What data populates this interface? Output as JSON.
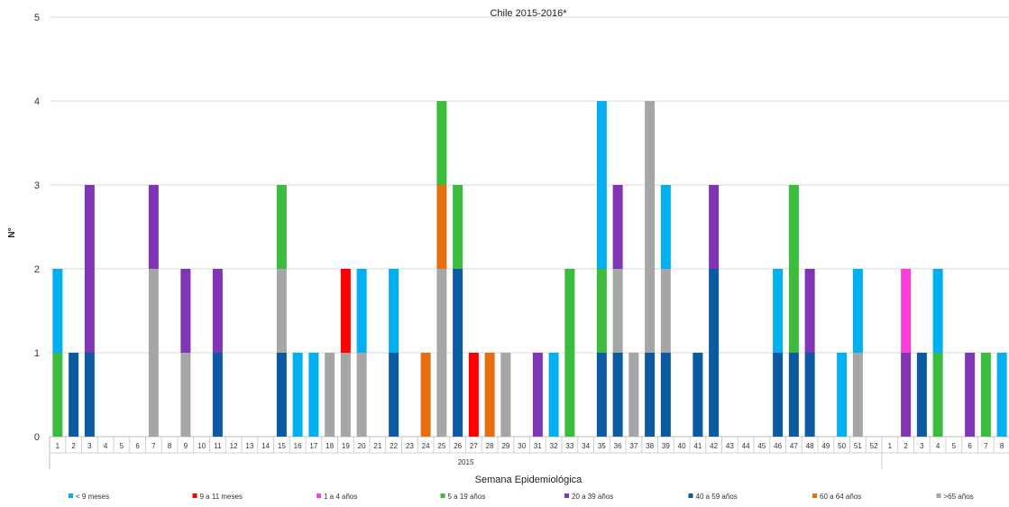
{
  "chart_data": {
    "type": "bar",
    "stacked": true,
    "title": "Chile 2015-2016*",
    "xlabel": "Semana Epidemiológica",
    "ylabel": "N°",
    "ylim": [
      0,
      5
    ],
    "yticks": [
      0,
      1,
      2,
      3,
      4,
      5
    ],
    "grid": true,
    "legend_position": "bottom",
    "year_groups": [
      {
        "label": "2015",
        "count": 52
      },
      {
        "label": "",
        "count": 10
      }
    ],
    "categories": [
      "1",
      "2",
      "3",
      "4",
      "5",
      "6",
      "7",
      "8",
      "9",
      "10",
      "11",
      "12",
      "13",
      "14",
      "15",
      "16",
      "17",
      "18",
      "19",
      "20",
      "21",
      "22",
      "23",
      "24",
      "25",
      "26",
      "27",
      "28",
      "29",
      "30",
      "31",
      "32",
      "33",
      "34",
      "35",
      "36",
      "37",
      "38",
      "39",
      "40",
      "41",
      "42",
      "43",
      "44",
      "45",
      "46",
      "47",
      "48",
      "49",
      "50",
      "51",
      "52",
      "1",
      "2",
      "3",
      "4",
      "5",
      "6",
      "7",
      "8",
      "9",
      "10"
    ],
    "series": [
      {
        "name": "< 9 meses",
        "color": "#00b0f0",
        "values": [
          1,
          0,
          0,
          0,
          0,
          0,
          0,
          0,
          0,
          0,
          0,
          0,
          0,
          0,
          0,
          1,
          1,
          0,
          0,
          1,
          0,
          1,
          0,
          0,
          0,
          0,
          0,
          0,
          0,
          0,
          0,
          1,
          0,
          0,
          2,
          0,
          0,
          0,
          1,
          0,
          0,
          0,
          0,
          0,
          0,
          1,
          0,
          0,
          0,
          1,
          1,
          0,
          0,
          0,
          0,
          1,
          0,
          0,
          0,
          1,
          0,
          0
        ]
      },
      {
        "name": "9  a 11 meses",
        "color": "#ff0000",
        "values": [
          0,
          0,
          0,
          0,
          0,
          0,
          0,
          0,
          0,
          0,
          0,
          0,
          0,
          0,
          0,
          0,
          0,
          0,
          1,
          0,
          0,
          0,
          0,
          0,
          0,
          0,
          1,
          0,
          0,
          0,
          0,
          0,
          0,
          0,
          0,
          0,
          0,
          0,
          0,
          0,
          0,
          0,
          0,
          0,
          0,
          0,
          0,
          0,
          0,
          0,
          0,
          0,
          0,
          0,
          0,
          0,
          0,
          0,
          0,
          0,
          0,
          0
        ]
      },
      {
        "name": "1  a 4 años",
        "color": "#ff3cdc",
        "values": [
          0,
          0,
          0,
          0,
          0,
          0,
          0,
          0,
          0,
          0,
          0,
          0,
          0,
          0,
          0,
          0,
          0,
          0,
          0,
          0,
          0,
          0,
          0,
          0,
          0,
          0,
          0,
          0,
          0,
          0,
          0,
          0,
          0,
          0,
          0,
          0,
          0,
          0,
          0,
          0,
          0,
          0,
          0,
          0,
          0,
          0,
          0,
          0,
          0,
          0,
          0,
          0,
          0,
          1,
          0,
          0,
          0,
          0,
          0,
          0,
          0,
          0
        ]
      },
      {
        "name": "5 a 19 años",
        "color": "#3cbc3c",
        "values": [
          1,
          0,
          0,
          0,
          0,
          0,
          0,
          0,
          0,
          0,
          0,
          0,
          0,
          0,
          1,
          0,
          0,
          0,
          0,
          0,
          0,
          0,
          0,
          0,
          1,
          1,
          0,
          0,
          0,
          0,
          0,
          0,
          2,
          0,
          1,
          0,
          0,
          0,
          0,
          0,
          0,
          0,
          0,
          0,
          0,
          0,
          2,
          0,
          0,
          0,
          0,
          0,
          0,
          0,
          0,
          1,
          0,
          0,
          1,
          0,
          0,
          0
        ]
      },
      {
        "name": "20 a 39 años",
        "color": "#7f35b5",
        "values": [
          0,
          0,
          2,
          0,
          0,
          0,
          1,
          0,
          1,
          0,
          1,
          0,
          0,
          0,
          0,
          0,
          0,
          0,
          0,
          0,
          0,
          0,
          0,
          0,
          0,
          0,
          0,
          0,
          0,
          0,
          1,
          0,
          0,
          0,
          0,
          1,
          0,
          0,
          0,
          0,
          0,
          1,
          0,
          0,
          0,
          0,
          0,
          1,
          0,
          0,
          0,
          0,
          0,
          1,
          0,
          0,
          0,
          1,
          0,
          0,
          0,
          0
        ]
      },
      {
        "name": "40 a 59 años",
        "color": "#0b5aa2",
        "values": [
          0,
          1,
          1,
          0,
          0,
          0,
          0,
          0,
          0,
          0,
          1,
          0,
          0,
          0,
          1,
          0,
          0,
          0,
          0,
          0,
          0,
          1,
          0,
          0,
          0,
          2,
          0,
          0,
          0,
          0,
          0,
          0,
          0,
          0,
          1,
          1,
          0,
          1,
          1,
          0,
          1,
          2,
          0,
          0,
          0,
          1,
          1,
          1,
          0,
          0,
          0,
          0,
          0,
          0,
          1,
          0,
          0,
          0,
          0,
          0,
          1,
          0
        ]
      },
      {
        "name": "60 a 64 años",
        "color": "#e66f12",
        "values": [
          0,
          0,
          0,
          0,
          0,
          0,
          0,
          0,
          0,
          0,
          0,
          0,
          0,
          0,
          0,
          0,
          0,
          0,
          0,
          0,
          0,
          0,
          0,
          1,
          1,
          0,
          0,
          1,
          0,
          0,
          0,
          0,
          0,
          0,
          0,
          0,
          0,
          0,
          0,
          0,
          0,
          0,
          0,
          0,
          0,
          0,
          0,
          0,
          0,
          0,
          0,
          0,
          0,
          0,
          0,
          0,
          0,
          0,
          0,
          0,
          0,
          0
        ]
      },
      {
        "name": ">65 años",
        "color": "#a6a6a6",
        "values": [
          0,
          0,
          0,
          0,
          0,
          0,
          2,
          0,
          1,
          0,
          0,
          0,
          0,
          0,
          1,
          0,
          0,
          1,
          1,
          1,
          0,
          0,
          0,
          0,
          2,
          0,
          0,
          0,
          1,
          0,
          0,
          0,
          0,
          0,
          0,
          1,
          1,
          3,
          1,
          0,
          0,
          0,
          0,
          0,
          0,
          0,
          0,
          0,
          0,
          0,
          1,
          0,
          0,
          0,
          0,
          0,
          0,
          0,
          0,
          0,
          0,
          0
        ]
      }
    ],
    "stack_order": [
      5,
      7,
      6,
      3,
      4,
      0,
      1,
      2
    ]
  }
}
